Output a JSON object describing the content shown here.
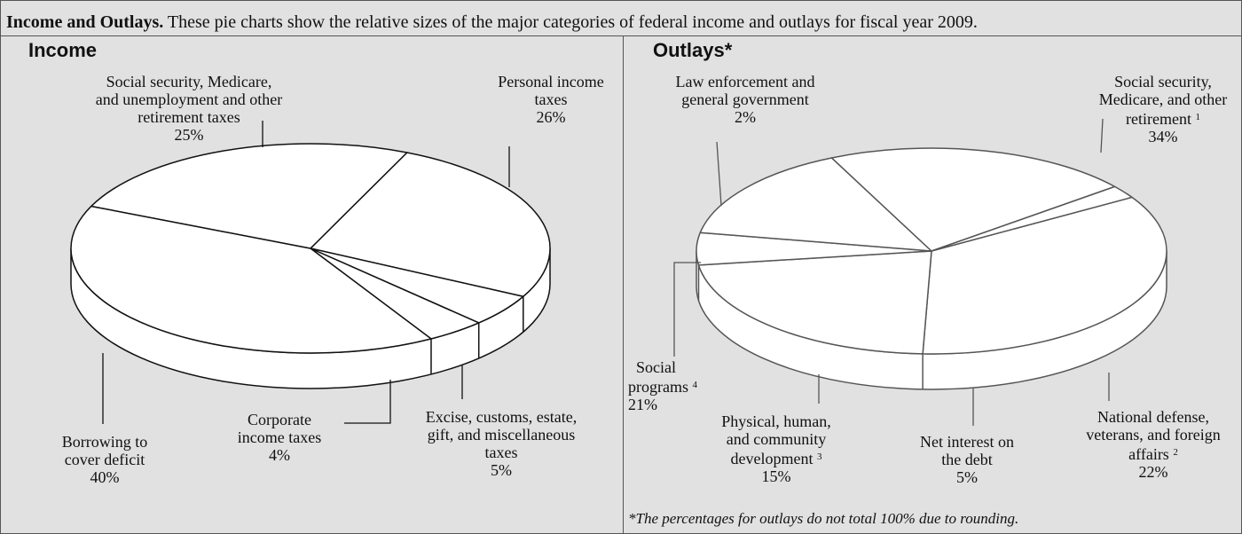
{
  "caption": {
    "lead": "Income and Outlays.",
    "text": "These pie charts show the relative sizes of the major categories of federal income and outlays for fiscal year 2009."
  },
  "footnote": "*The percentages for outlays do not total 100% due to rounding.",
  "colors": {
    "background": "#e1e1e1",
    "pie_fill": "#ffffff",
    "income_stroke": "#111111",
    "outlays_stroke": "#555555"
  },
  "chart_data": [
    {
      "type": "pie",
      "title": "Income",
      "slices": [
        {
          "label": "Personal income taxes",
          "value": 26,
          "pct_label": "26%"
        },
        {
          "label": "Excise, customs, estate, gift, and miscellaneous taxes",
          "value": 5,
          "pct_label": "5%"
        },
        {
          "label": "Corporate income taxes",
          "value": 4,
          "pct_label": "4%"
        },
        {
          "label": "Borrowing to cover deficit",
          "value": 40,
          "pct_label": "40%"
        },
        {
          "label": "Social security, Medicare, and unemployment and other retirement taxes",
          "value": 25,
          "pct_label": "25%"
        }
      ]
    },
    {
      "type": "pie",
      "title": "Outlays*",
      "slices": [
        {
          "label": "Social security, Medicare, and other retirement",
          "note": "1",
          "value": 34,
          "pct_label": "34%"
        },
        {
          "label": "National defense, veterans, and foreign affairs",
          "note": "2",
          "value": 22,
          "pct_label": "22%"
        },
        {
          "label": "Net interest on the debt",
          "note": "",
          "value": 5,
          "pct_label": "5%"
        },
        {
          "label": "Physical, human, and community development",
          "note": "3",
          "value": 15,
          "pct_label": "15%"
        },
        {
          "label": "Social programs",
          "note": "4",
          "value": 21,
          "pct_label": "21%"
        },
        {
          "label": "Law enforcement and general government",
          "note": "",
          "value": 2,
          "pct_label": "2%"
        }
      ]
    }
  ]
}
